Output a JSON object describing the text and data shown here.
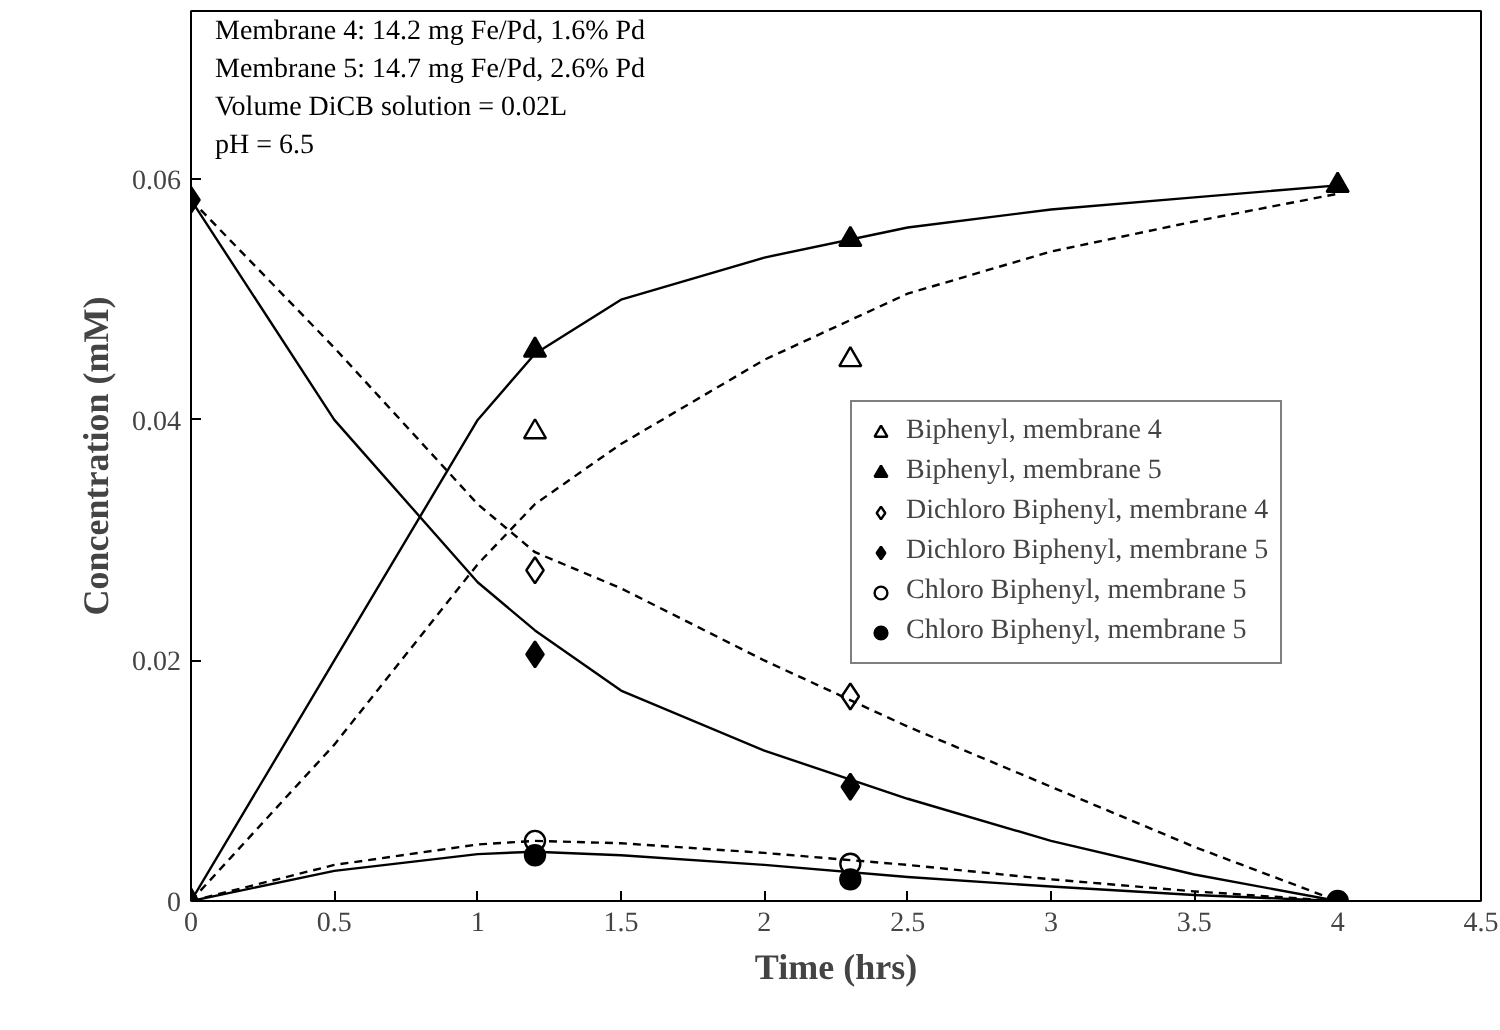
{
  "chart_data": {
    "type": "scatter",
    "xlabel": "Time (hrs)",
    "ylabel": "Concentration (mM)",
    "annotations": [
      "Membrane 4: 14.2 mg Fe/Pd, 1.6% Pd",
      "Membrane 5: 14.7 mg Fe/Pd, 2.6% Pd",
      "Volume DiCB solution = 0.02L",
      "pH = 6.5"
    ],
    "xlim": [
      0,
      4.5
    ],
    "xticks": [
      0,
      0.5,
      1,
      1.5,
      2,
      2.5,
      3,
      3.5,
      4,
      4.5
    ],
    "ylim": [
      0,
      0.074
    ],
    "yticks": [
      0,
      0.02,
      0.04,
      0.06
    ],
    "grid": false,
    "legend": "right",
    "series": [
      {
        "name": "Biphenyl, membrane 4",
        "marker": "triangle",
        "color": "#ffffff",
        "x": [
          null,
          1.2,
          2.3,
          null
        ],
        "values": [
          null,
          0.039,
          0.045,
          null
        ]
      },
      {
        "name": "Biphenyl, membrane 5",
        "marker": "triangle",
        "color": "#000000",
        "x": [
          0,
          1.2,
          2.3,
          4
        ],
        "values": [
          0,
          0.0458,
          0.055,
          0.0595
        ]
      },
      {
        "name": "Dichloro Biphenyl, membrane 4",
        "marker": "diamond",
        "color": "#ffffff",
        "x": [
          null,
          1.2,
          2.3,
          null
        ],
        "values": [
          null,
          0.0275,
          0.017,
          null
        ]
      },
      {
        "name": "Dichloro Biphenyl, membrane 5",
        "marker": "diamond",
        "color": "#000000",
        "x": [
          0,
          1.2,
          2.3,
          null
        ],
        "values": [
          0.0583,
          0.0205,
          0.0095,
          null
        ]
      },
      {
        "name": "Chloro Biphenyl, membrane 5",
        "marker": "circle",
        "color": "#ffffff",
        "x": [
          null,
          1.2,
          2.3,
          null
        ],
        "values": [
          null,
          0.005,
          0.0031,
          null
        ]
      },
      {
        "name": "Chloro Biphenyl, membrane 5",
        "marker": "circle",
        "color": "#000000",
        "x": [
          null,
          1.2,
          2.3,
          4
        ],
        "values": [
          null,
          0.0038,
          0.0018,
          0
        ]
      },
      {
        "type": "line",
        "line_style": "solid",
        "color": "#000000",
        "x": [
          0,
          0.5,
          1,
          1.2,
          1.5,
          2,
          2.5,
          3,
          3.5,
          4
        ],
        "values": [
          0,
          0.02,
          0.04,
          0.0455,
          0.05,
          0.0535,
          0.056,
          0.0575,
          0.0585,
          0.0595
        ]
      },
      {
        "type": "line",
        "line_style": "dashed",
        "color": "#000000",
        "x": [
          0,
          0.5,
          1,
          1.2,
          1.5,
          2,
          2.5,
          3,
          3.5,
          4
        ],
        "values": [
          0,
          0.013,
          0.028,
          0.033,
          0.038,
          0.045,
          0.0505,
          0.054,
          0.0565,
          0.0588
        ]
      },
      {
        "type": "line",
        "line_style": "dashed",
        "color": "#000000",
        "x": [
          0,
          0.5,
          1,
          1.2,
          1.5,
          2,
          2.5,
          3,
          3.5,
          4
        ],
        "values": [
          0.0583,
          0.046,
          0.033,
          0.029,
          0.026,
          0.02,
          0.0145,
          0.0095,
          0.0045,
          0
        ]
      },
      {
        "type": "line",
        "line_style": "solid",
        "color": "#000000",
        "x": [
          0,
          0.5,
          1,
          1.2,
          1.5,
          2,
          2.5,
          3,
          3.5,
          4
        ],
        "values": [
          0.0583,
          0.04,
          0.0265,
          0.0225,
          0.0175,
          0.0125,
          0.0085,
          0.005,
          0.0022,
          0
        ]
      },
      {
        "type": "line",
        "line_style": "dashed",
        "color": "#000000",
        "x": [
          0,
          0.5,
          1,
          1.2,
          1.5,
          2,
          2.5,
          3,
          3.5,
          4
        ],
        "values": [
          0,
          0.003,
          0.0047,
          0.005,
          0.0048,
          0.004,
          0.003,
          0.0018,
          0.0008,
          0
        ]
      },
      {
        "type": "line",
        "line_style": "solid",
        "color": "#000000",
        "x": [
          0,
          0.5,
          1,
          1.2,
          1.5,
          2,
          2.5,
          3,
          3.5,
          4
        ],
        "values": [
          0,
          0.0025,
          0.0039,
          0.0041,
          0.0038,
          0.003,
          0.002,
          0.0012,
          0.0005,
          0
        ]
      }
    ]
  }
}
